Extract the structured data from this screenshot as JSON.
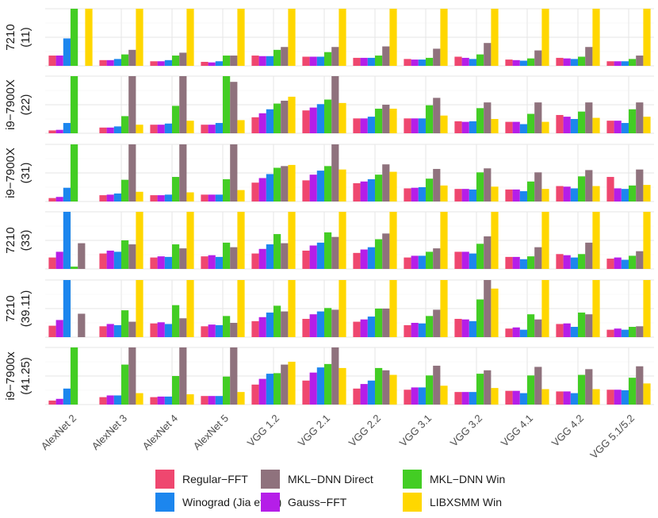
{
  "chart_data": {
    "type": "bar",
    "title": "",
    "xlabel": "",
    "ylabel": "",
    "categories": [
      "AlexNet 2",
      "AlexNet 3",
      "AlexNet 4",
      "AlexNet 5",
      "VGG 1.2",
      "VGG 2.1",
      "VGG 2.2",
      "VGG 3.1",
      "VGG 3.2",
      "VGG 4.1",
      "VGG 4.2",
      "VGG 5.1/5.2"
    ],
    "ylim": [
      0,
      1
    ],
    "legend_position": "bottom",
    "series_names": [
      "Regular−FFT",
      "Gauss−FFT",
      "Winograd (Jia et al.)",
      "MKL−DNN Win",
      "MKL−DNN Direct",
      "LIBXSMM Win"
    ],
    "series_colors": [
      "#EF476F",
      "#B51EE8",
      "#1C86EE",
      "#43CD24",
      "#8F727D",
      "#FFD700"
    ],
    "legend_order": [
      0,
      2,
      4,
      1,
      3,
      5
    ],
    "panels": [
      {
        "label_line1": "7210",
        "label_line2": "(11)",
        "values": [
          [
            0.18,
            0.18,
            0.48,
            1.0,
            null,
            1.0
          ],
          [
            0.1,
            0.1,
            0.12,
            0.2,
            0.28,
            1.0
          ],
          [
            0.08,
            0.08,
            0.1,
            0.18,
            0.23,
            1.0
          ],
          [
            0.07,
            0.06,
            0.08,
            0.18,
            0.18,
            1.0
          ],
          [
            0.18,
            0.17,
            0.17,
            0.28,
            0.33,
            1.0
          ],
          [
            0.16,
            0.16,
            0.16,
            0.24,
            0.33,
            1.0
          ],
          [
            0.14,
            0.14,
            0.14,
            0.18,
            0.34,
            1.0
          ],
          [
            0.12,
            0.11,
            0.11,
            0.14,
            0.3,
            1.0
          ],
          [
            0.16,
            0.14,
            0.12,
            0.2,
            0.4,
            1.0
          ],
          [
            0.11,
            0.1,
            0.09,
            0.13,
            0.27,
            1.0
          ],
          [
            0.14,
            0.13,
            0.12,
            0.16,
            0.33,
            1.0
          ],
          [
            0.08,
            0.08,
            0.08,
            0.12,
            0.18,
            1.0
          ]
        ]
      },
      {
        "label_line1": "i9−7900X",
        "label_line2": "(22)",
        "values": [
          [
            0.05,
            0.06,
            0.18,
            1.0,
            null,
            null
          ],
          [
            0.1,
            0.1,
            0.12,
            0.3,
            1.0,
            0.15
          ],
          [
            0.15,
            0.15,
            0.17,
            0.48,
            1.0,
            0.22
          ],
          [
            0.15,
            0.15,
            0.18,
            1.0,
            0.9,
            0.23
          ],
          [
            0.28,
            0.35,
            0.42,
            0.52,
            0.57,
            0.64
          ],
          [
            0.4,
            0.45,
            0.51,
            0.59,
            1.0,
            0.53
          ],
          [
            0.26,
            0.26,
            0.29,
            0.43,
            0.5,
            0.43
          ],
          [
            0.26,
            0.26,
            0.26,
            0.49,
            0.62,
            0.31
          ],
          [
            0.21,
            0.2,
            0.21,
            0.44,
            0.54,
            0.25
          ],
          [
            0.2,
            0.2,
            0.16,
            0.34,
            0.54,
            0.2
          ],
          [
            0.32,
            0.29,
            0.25,
            0.38,
            0.54,
            0.27
          ],
          [
            0.22,
            0.22,
            0.18,
            0.42,
            0.54,
            0.29
          ]
        ]
      },
      {
        "label_line1": "i9−7900X",
        "label_line2": "(31)",
        "values": [
          [
            0.06,
            0.08,
            0.24,
            1.0,
            null,
            null
          ],
          [
            0.11,
            0.12,
            0.14,
            0.38,
            1.0,
            0.17
          ],
          [
            0.11,
            0.11,
            0.12,
            0.43,
            1.0,
            0.16
          ],
          [
            0.12,
            0.12,
            0.12,
            0.39,
            1.0,
            0.2
          ],
          [
            0.33,
            0.41,
            0.48,
            0.59,
            0.62,
            0.64
          ],
          [
            0.37,
            0.47,
            0.54,
            0.62,
            1.0,
            0.56
          ],
          [
            0.32,
            0.35,
            0.39,
            0.47,
            0.65,
            0.52
          ],
          [
            0.23,
            0.24,
            0.25,
            0.4,
            0.57,
            0.28
          ],
          [
            0.22,
            0.22,
            0.21,
            0.51,
            0.58,
            0.26
          ],
          [
            0.21,
            0.21,
            0.18,
            0.35,
            0.51,
            0.22
          ],
          [
            0.27,
            0.26,
            0.23,
            0.44,
            0.55,
            0.27
          ],
          [
            0.43,
            0.23,
            0.22,
            0.28,
            0.56,
            0.29
          ]
        ]
      },
      {
        "label_line1": "7210",
        "label_line2": "(33)",
        "values": [
          [
            0.2,
            0.3,
            1.0,
            0.04,
            0.45,
            null
          ],
          [
            0.27,
            0.32,
            0.3,
            0.5,
            0.43,
            1.0
          ],
          [
            0.2,
            0.22,
            0.21,
            0.43,
            0.36,
            1.0
          ],
          [
            0.22,
            0.24,
            0.21,
            0.46,
            0.38,
            1.0
          ],
          [
            0.27,
            0.35,
            0.43,
            0.61,
            0.45,
            1.0
          ],
          [
            0.32,
            0.41,
            0.46,
            0.64,
            0.56,
            1.0
          ],
          [
            0.28,
            0.34,
            0.38,
            0.52,
            0.62,
            1.0
          ],
          [
            0.2,
            0.23,
            0.23,
            0.3,
            0.36,
            1.0
          ],
          [
            0.3,
            0.3,
            0.27,
            0.44,
            0.57,
            1.0
          ],
          [
            0.21,
            0.21,
            0.17,
            0.22,
            0.38,
            1.0
          ],
          [
            0.26,
            0.24,
            0.2,
            0.26,
            0.46,
            1.0
          ],
          [
            0.18,
            0.2,
            0.16,
            0.23,
            0.31,
            1.0
          ]
        ]
      },
      {
        "label_line1": "7210",
        "label_line2": "(39.11)",
        "values": [
          [
            0.2,
            0.3,
            1.0,
            null,
            0.41,
            null
          ],
          [
            0.19,
            0.23,
            0.21,
            0.47,
            0.27,
            1.0
          ],
          [
            0.24,
            0.26,
            0.23,
            0.56,
            0.33,
            1.0
          ],
          [
            0.19,
            0.22,
            0.21,
            0.37,
            0.25,
            1.0
          ],
          [
            0.28,
            0.35,
            0.43,
            0.55,
            0.45,
            1.0
          ],
          [
            0.32,
            0.4,
            0.45,
            0.51,
            0.48,
            1.0
          ],
          [
            0.27,
            0.31,
            0.36,
            0.5,
            0.5,
            1.0
          ],
          [
            0.21,
            0.25,
            0.24,
            0.37,
            0.48,
            1.0
          ],
          [
            0.32,
            0.31,
            0.28,
            0.66,
            1.0,
            0.85
          ],
          [
            0.15,
            0.17,
            0.13,
            0.4,
            0.31,
            1.0
          ],
          [
            0.23,
            0.24,
            0.18,
            0.43,
            0.4,
            1.0
          ],
          [
            0.13,
            0.15,
            0.13,
            0.18,
            0.19,
            1.0
          ]
        ]
      },
      {
        "label_line1": "i9−7900x",
        "label_line2": "(41.25)",
        "values": [
          [
            0.07,
            0.1,
            0.28,
            1.0,
            null,
            null
          ],
          [
            0.13,
            0.16,
            0.16,
            0.7,
            1.0,
            0.2
          ],
          [
            0.13,
            0.14,
            0.14,
            0.5,
            1.0,
            0.18
          ],
          [
            0.15,
            0.15,
            0.15,
            0.49,
            1.0,
            0.22
          ],
          [
            0.35,
            0.45,
            0.54,
            0.55,
            0.7,
            0.75
          ],
          [
            0.42,
            0.56,
            0.65,
            0.71,
            1.0,
            0.64
          ],
          [
            0.28,
            0.36,
            0.42,
            0.64,
            0.6,
            0.52
          ],
          [
            0.26,
            0.3,
            0.3,
            0.51,
            0.68,
            0.33
          ],
          [
            0.22,
            0.22,
            0.22,
            0.54,
            0.6,
            0.29
          ],
          [
            0.24,
            0.24,
            0.2,
            0.51,
            0.66,
            0.27
          ],
          [
            0.23,
            0.23,
            0.2,
            0.52,
            0.62,
            0.27
          ],
          [
            0.26,
            0.26,
            0.25,
            0.47,
            0.67,
            0.37
          ]
        ]
      }
    ]
  }
}
